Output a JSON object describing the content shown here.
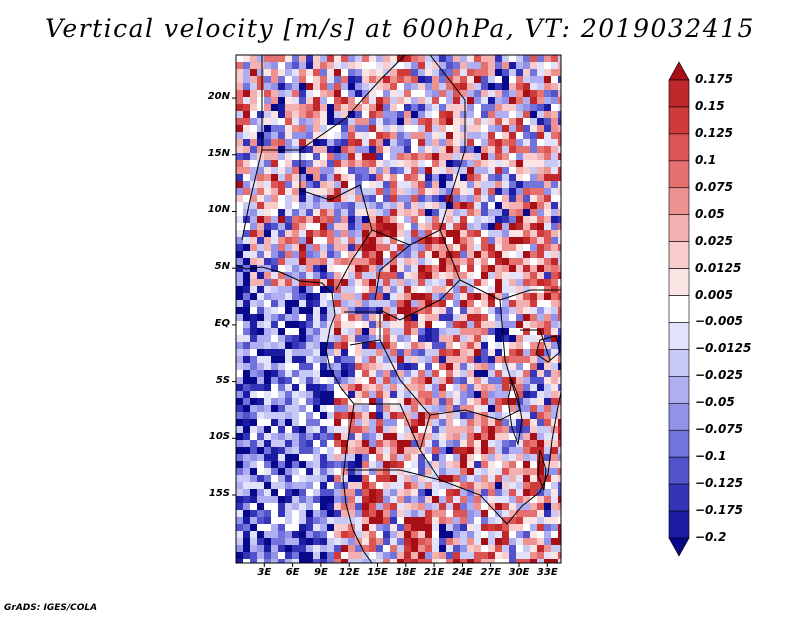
{
  "title": "Vertical velocity [m/s] at 600hPa, VT: 2019032415",
  "footer": "GrADS: IGES/COLA",
  "map": {
    "lon_range_deg": [
      0,
      35
    ],
    "lat_range_deg": [
      -19,
      25
    ],
    "lat_labels": [
      "20N",
      "15N",
      "10N",
      "5N",
      "EQ",
      "5S",
      "10S",
      "15S"
    ],
    "lon_labels": [
      "3E",
      "6E",
      "9E",
      "12E",
      "15E",
      "18E",
      "21E",
      "24E",
      "27E",
      "30E",
      "33E"
    ]
  },
  "colorbar": {
    "labels": [
      "0.175",
      "0.15",
      "0.125",
      "0.1",
      "0.075",
      "0.05",
      "0.025",
      "0.0125",
      "0.005",
      "−0.005",
      "−0.0125",
      "−0.025",
      "−0.05",
      "−0.075",
      "−0.1",
      "−0.125",
      "−0.175",
      "−0.2"
    ],
    "colors": [
      "#a50f15",
      "#c0282c",
      "#cf3a3a",
      "#db5555",
      "#e47070",
      "#ec9090",
      "#f3b0b0",
      "#f8cccc",
      "#fbe4e4",
      "#ffffff",
      "#e2e2fb",
      "#c9c9f6",
      "#aeaef0",
      "#9292e8",
      "#7373dc",
      "#5353cc",
      "#3434b8",
      "#1c1ca3",
      "#08088a"
    ]
  }
}
